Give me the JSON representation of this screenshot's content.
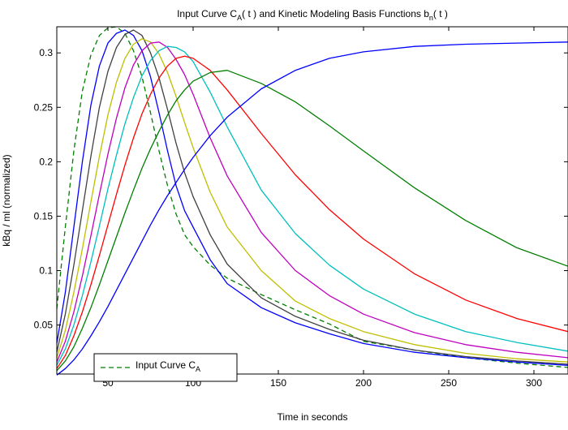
{
  "chart_data": {
    "type": "line",
    "title": "Input Curve C",
    "title_parts": {
      "pre": "Input Curve C",
      "sub1": "A",
      "mid": "( t ) and Kinetic Modeling Basis Functions b",
      "sub2": "n",
      "post": "( t )"
    },
    "xlabel": "Time in seconds",
    "ylabel": "kBq / ml (normalized)",
    "xlim": [
      20,
      320
    ],
    "ylim": [
      0.005,
      0.324
    ],
    "xticks": [
      50,
      100,
      150,
      200,
      250,
      300
    ],
    "yticks": [
      0.05,
      0.1,
      0.15,
      0.2,
      0.25,
      0.3
    ],
    "grid": false,
    "legend": {
      "placement": "bottom-left",
      "label": "Input Curve C",
      "label_sub": "A"
    },
    "series": [
      {
        "name": "Input Curve C_A",
        "style": "dashed",
        "color": "#007f00",
        "x": [
          20,
          25,
          30,
          35,
          40,
          45,
          50,
          55,
          60,
          65,
          70,
          75,
          80,
          85,
          90,
          95,
          100,
          110,
          120,
          140,
          160,
          180,
          200,
          230,
          260,
          290,
          320
        ],
        "y": [
          0.065,
          0.14,
          0.21,
          0.265,
          0.298,
          0.316,
          0.323,
          0.324,
          0.318,
          0.302,
          0.278,
          0.245,
          0.21,
          0.178,
          0.152,
          0.133,
          0.122,
          0.105,
          0.093,
          0.078,
          0.064,
          0.051,
          0.035,
          0.027,
          0.02,
          0.015,
          0.011
        ]
      },
      {
        "color": "#0000ff",
        "x": [
          20,
          25,
          30,
          35,
          40,
          45,
          50,
          55,
          60,
          65,
          70,
          75,
          80,
          85,
          90,
          95,
          100,
          110,
          120,
          140,
          160,
          180,
          200,
          230,
          260,
          290,
          320
        ],
        "y": [
          0.033,
          0.08,
          0.14,
          0.2,
          0.252,
          0.288,
          0.309,
          0.318,
          0.321,
          0.316,
          0.302,
          0.278,
          0.245,
          0.21,
          0.178,
          0.155,
          0.14,
          0.11,
          0.088,
          0.066,
          0.052,
          0.042,
          0.033,
          0.025,
          0.02,
          0.016,
          0.013
        ]
      },
      {
        "color": "#404040",
        "x": [
          20,
          25,
          30,
          35,
          40,
          45,
          50,
          55,
          60,
          65,
          70,
          75,
          80,
          85,
          90,
          95,
          100,
          110,
          120,
          140,
          160,
          180,
          200,
          230,
          260,
          290,
          320
        ],
        "y": [
          0.025,
          0.06,
          0.105,
          0.155,
          0.205,
          0.25,
          0.283,
          0.305,
          0.317,
          0.321,
          0.316,
          0.3,
          0.277,
          0.248,
          0.217,
          0.19,
          0.168,
          0.133,
          0.106,
          0.075,
          0.058,
          0.046,
          0.036,
          0.027,
          0.021,
          0.017,
          0.014
        ]
      },
      {
        "color": "#bfbf00",
        "x": [
          20,
          25,
          30,
          35,
          40,
          45,
          50,
          55,
          60,
          65,
          70,
          75,
          80,
          85,
          90,
          95,
          100,
          110,
          120,
          140,
          160,
          180,
          200,
          230,
          260,
          290,
          320
        ],
        "y": [
          0.02,
          0.045,
          0.08,
          0.12,
          0.163,
          0.205,
          0.243,
          0.273,
          0.295,
          0.308,
          0.313,
          0.31,
          0.299,
          0.282,
          0.26,
          0.236,
          0.213,
          0.172,
          0.14,
          0.1,
          0.072,
          0.056,
          0.044,
          0.032,
          0.024,
          0.019,
          0.016
        ]
      },
      {
        "color": "#bf00bf",
        "x": [
          20,
          25,
          30,
          35,
          40,
          45,
          50,
          55,
          60,
          65,
          70,
          75,
          80,
          85,
          90,
          95,
          100,
          110,
          120,
          140,
          160,
          180,
          200,
          230,
          260,
          290,
          320
        ],
        "y": [
          0.016,
          0.035,
          0.062,
          0.095,
          0.132,
          0.17,
          0.207,
          0.24,
          0.268,
          0.289,
          0.302,
          0.309,
          0.31,
          0.305,
          0.294,
          0.28,
          0.262,
          0.222,
          0.187,
          0.135,
          0.1,
          0.077,
          0.06,
          0.043,
          0.032,
          0.025,
          0.02
        ]
      },
      {
        "color": "#00bfbf",
        "x": [
          20,
          25,
          30,
          35,
          40,
          45,
          50,
          55,
          60,
          65,
          70,
          75,
          80,
          85,
          90,
          95,
          100,
          110,
          120,
          140,
          160,
          180,
          200,
          230,
          260,
          290,
          320
        ],
        "y": [
          0.013,
          0.028,
          0.05,
          0.077,
          0.108,
          0.141,
          0.175,
          0.206,
          0.235,
          0.259,
          0.279,
          0.293,
          0.302,
          0.306,
          0.305,
          0.301,
          0.292,
          0.264,
          0.232,
          0.174,
          0.134,
          0.105,
          0.083,
          0.06,
          0.044,
          0.034,
          0.026
        ]
      },
      {
        "color": "#ff0000",
        "x": [
          20,
          25,
          30,
          35,
          40,
          45,
          50,
          55,
          60,
          65,
          70,
          75,
          80,
          85,
          90,
          95,
          100,
          110,
          120,
          140,
          160,
          180,
          200,
          230,
          260,
          290,
          320
        ],
        "y": [
          0.01,
          0.022,
          0.04,
          0.062,
          0.087,
          0.114,
          0.142,
          0.17,
          0.197,
          0.222,
          0.244,
          0.262,
          0.277,
          0.288,
          0.295,
          0.297,
          0.295,
          0.284,
          0.266,
          0.226,
          0.188,
          0.156,
          0.129,
          0.097,
          0.073,
          0.056,
          0.044
        ]
      },
      {
        "color": "#007f00",
        "x": [
          20,
          25,
          30,
          35,
          40,
          45,
          50,
          55,
          60,
          65,
          70,
          75,
          80,
          85,
          90,
          95,
          100,
          110,
          120,
          140,
          160,
          180,
          200,
          230,
          260,
          290,
          320
        ],
        "y": [
          0.008,
          0.017,
          0.03,
          0.047,
          0.066,
          0.087,
          0.109,
          0.131,
          0.153,
          0.174,
          0.194,
          0.212,
          0.228,
          0.243,
          0.256,
          0.266,
          0.274,
          0.282,
          0.284,
          0.272,
          0.255,
          0.233,
          0.21,
          0.176,
          0.146,
          0.121,
          0.104
        ]
      },
      {
        "color": "#0000ff",
        "x": [
          20,
          25,
          30,
          35,
          40,
          45,
          50,
          55,
          60,
          65,
          70,
          75,
          80,
          85,
          90,
          95,
          100,
          110,
          120,
          140,
          160,
          180,
          200,
          230,
          260,
          290,
          320
        ],
        "y": [
          0.004,
          0.01,
          0.018,
          0.028,
          0.04,
          0.053,
          0.067,
          0.082,
          0.097,
          0.112,
          0.127,
          0.142,
          0.156,
          0.169,
          0.181,
          0.193,
          0.204,
          0.224,
          0.241,
          0.267,
          0.284,
          0.295,
          0.301,
          0.306,
          0.308,
          0.309,
          0.31
        ]
      }
    ]
  }
}
